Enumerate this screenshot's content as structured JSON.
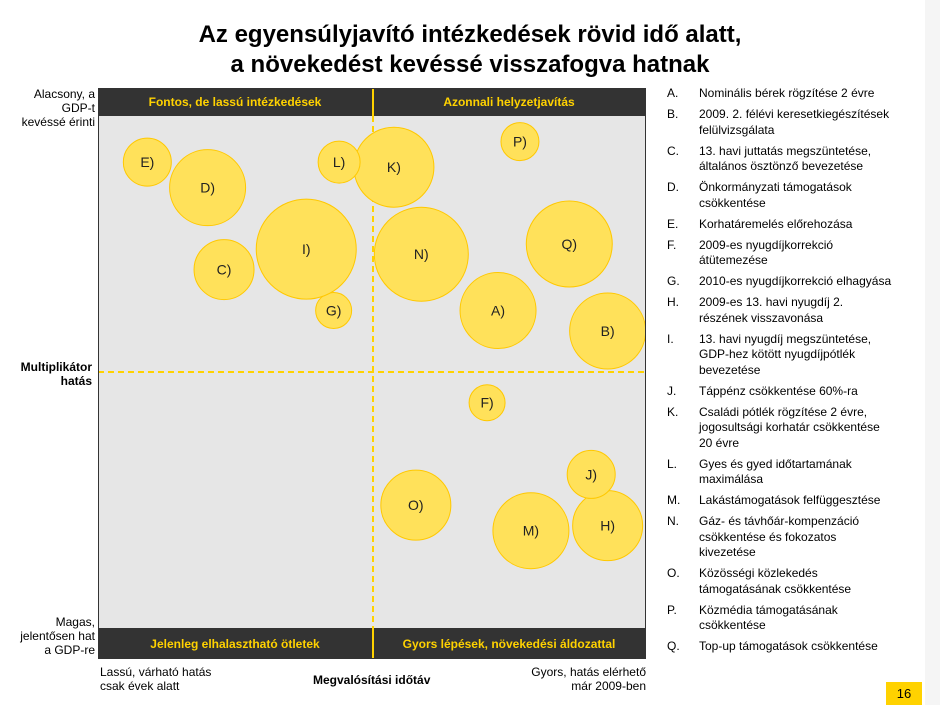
{
  "slide": {
    "title_line1": "Az egyensúlyjavító intézkedések rövid idő alatt,",
    "title_line2": "a növekedést kevéssé visszafogva hatnak",
    "page_number": "16"
  },
  "chart_data": {
    "type": "bubble",
    "x_axis": {
      "label": "Megvalósítási időtáv",
      "left_label_line1": "Lassú, várható hatás",
      "left_label_line2": "csak évek alatt",
      "right_label_line1": "Gyors, hatás elérhető",
      "right_label_line2": "már 2009-ben"
    },
    "y_axis": {
      "label_line1": "Multiplikátor",
      "label_line2": "hatás",
      "top_label_line1": "Alacsony, a",
      "top_label_line2": "GDP-t",
      "top_label_line3": "kevéssé érinti",
      "bottom_label_line1": "Magas,",
      "bottom_label_line2": "jelentősen hat",
      "bottom_label_line3": "a GDP-re"
    },
    "quadrants": {
      "top_left": "Fontos, de lassú intézkedések",
      "top_right": "Azonnali helyzetjavítás",
      "bottom_left": "Jelenleg elhalasztható ötletek",
      "bottom_right": "Gyors lépések, növekedési áldozattal"
    },
    "bubble_color": "#ffe15a",
    "bubble_stroke": "#ffc800",
    "frame_color": "#333333",
    "background_color": "#e6e6e6",
    "divider_color": "#ffd200",
    "bubbles": [
      {
        "id": "A",
        "label": "A)",
        "x": 0.73,
        "y": 0.62,
        "size": 38
      },
      {
        "id": "B",
        "label": "B)",
        "x": 0.93,
        "y": 0.58,
        "size": 38
      },
      {
        "id": "C",
        "label": "C)",
        "x": 0.23,
        "y": 0.7,
        "size": 30
      },
      {
        "id": "D",
        "label": "D)",
        "x": 0.2,
        "y": 0.86,
        "size": 38
      },
      {
        "id": "E",
        "label": "E)",
        "x": 0.09,
        "y": 0.91,
        "size": 24
      },
      {
        "id": "F",
        "label": "F)",
        "x": 0.71,
        "y": 0.44,
        "size": 18
      },
      {
        "id": "G",
        "label": "G)",
        "x": 0.43,
        "y": 0.62,
        "size": 18
      },
      {
        "id": "H",
        "label": "H)",
        "x": 0.93,
        "y": 0.2,
        "size": 35
      },
      {
        "id": "I",
        "label": "I)",
        "x": 0.38,
        "y": 0.74,
        "size": 50
      },
      {
        "id": "J",
        "label": "J)",
        "x": 0.9,
        "y": 0.3,
        "size": 24
      },
      {
        "id": "K",
        "label": "K)",
        "x": 0.54,
        "y": 0.9,
        "size": 40
      },
      {
        "id": "L",
        "label": "L)",
        "x": 0.44,
        "y": 0.91,
        "size": 21
      },
      {
        "id": "M",
        "label": "M)",
        "x": 0.79,
        "y": 0.19,
        "size": 38
      },
      {
        "id": "N",
        "label": "N)",
        "x": 0.59,
        "y": 0.73,
        "size": 47
      },
      {
        "id": "O",
        "label": "O)",
        "x": 0.58,
        "y": 0.24,
        "size": 35
      },
      {
        "id": "P",
        "label": "P)",
        "x": 0.77,
        "y": 0.95,
        "size": 19
      },
      {
        "id": "Q",
        "label": "Q)",
        "x": 0.86,
        "y": 0.75,
        "size": 43
      }
    ]
  },
  "legend": [
    {
      "key": "A.",
      "lines": [
        "Nominális bérek rögzítése 2 évre"
      ]
    },
    {
      "key": "B.",
      "lines": [
        "2009. 2. félévi keresetkiegészítések",
        "felülvizsgálata"
      ]
    },
    {
      "key": "C.",
      "lines": [
        "13. havi juttatás megszüntetése,",
        "általános ösztönző bevezetése"
      ]
    },
    {
      "key": "D.",
      "lines": [
        "Önkormányzati támogatások",
        "csökkentése"
      ]
    },
    {
      "key": "E.",
      "lines": [
        "Korhatáremelés előrehozása"
      ]
    },
    {
      "key": "F.",
      "lines": [
        "2009-es nyugdíjkorrekció",
        "átütemezése"
      ]
    },
    {
      "key": "G.",
      "lines": [
        "2010-es nyugdíjkorrekció elhagyása"
      ]
    },
    {
      "key": "H.",
      "lines": [
        "2009-es 13. havi nyugdíj 2.",
        "részének visszavonása"
      ]
    },
    {
      "key": "I.",
      "lines": [
        "13. havi nyugdíj megszüntetése,",
        "GDP-hez kötött nyugdíjpótlék",
        "bevezetése"
      ]
    },
    {
      "key": "J.",
      "lines": [
        "Táppénz csökkentése 60%-ra"
      ]
    },
    {
      "key": "K.",
      "lines": [
        "Családi pótlék rögzítése 2 évre,",
        "jogosultsági korhatár csökkentése",
        "20 évre"
      ]
    },
    {
      "key": "L.",
      "lines": [
        "Gyes és gyed időtartamának",
        "maximálása"
      ]
    },
    {
      "key": "M.",
      "lines": [
        "Lakástámogatások felfüggesztése"
      ]
    },
    {
      "key": "N.",
      "lines": [
        "Gáz- és távhőár-kompenzáció",
        "csökkentése és fokozatos",
        "kivezetése"
      ]
    },
    {
      "key": "O.",
      "lines": [
        "Közösségi közlekedés",
        "támogatásának csökkentése"
      ]
    },
    {
      "key": "P.",
      "lines": [
        "Közmédia támogatásának",
        "csökkentése"
      ]
    },
    {
      "key": "Q.",
      "lines": [
        "Top-up támogatások csökkentése"
      ]
    }
  ]
}
